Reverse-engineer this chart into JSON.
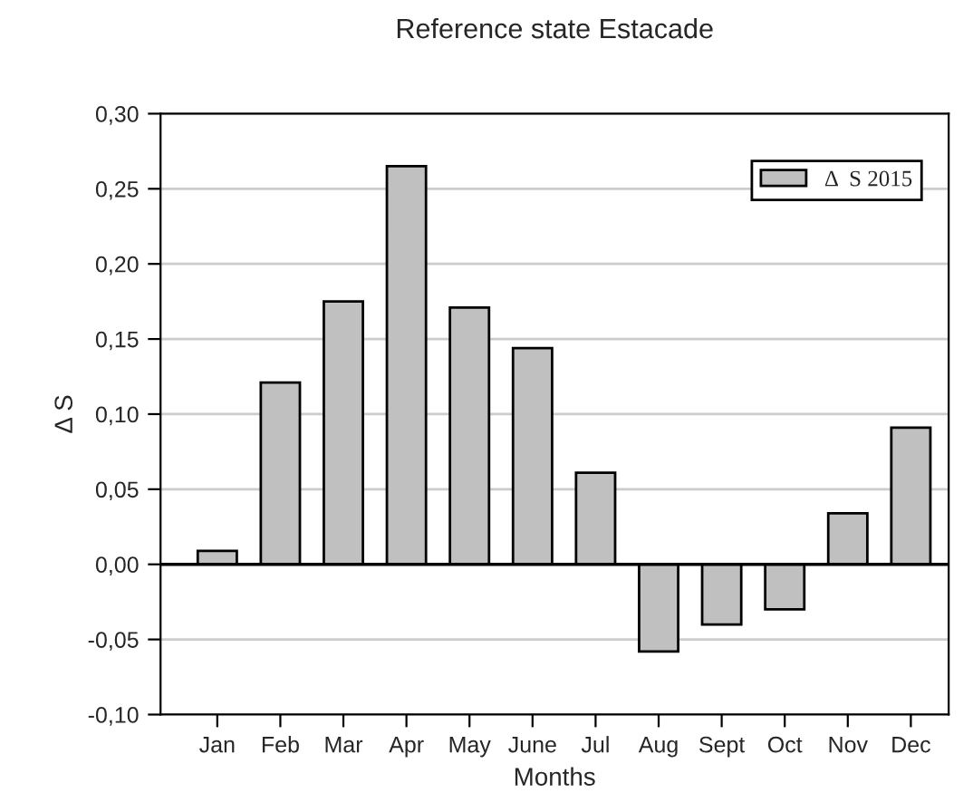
{
  "chart_data": {
    "type": "bar",
    "title": "Reference state Estacade",
    "xlabel": "Months",
    "ylabel": "Δ S",
    "categories": [
      "Jan",
      "Feb",
      "Mar",
      "Apr",
      "May",
      "June",
      "Jul",
      "Aug",
      "Sept",
      "Oct",
      "Nov",
      "Dec"
    ],
    "series": [
      {
        "name": "Δ  S 2015",
        "color": "#c0c0c0",
        "values": [
          0.009,
          0.121,
          0.175,
          0.265,
          0.171,
          0.144,
          0.061,
          -0.058,
          -0.04,
          -0.03,
          0.034,
          0.091
        ]
      }
    ],
    "ylim": [
      -0.1,
      0.3
    ],
    "yticks": [
      {
        "value": -0.1,
        "label": "-0,10"
      },
      {
        "value": -0.05,
        "label": "-0,05"
      },
      {
        "value": 0,
        "label": "0,00"
      },
      {
        "value": 0.05,
        "label": "0,05"
      },
      {
        "value": 0.1,
        "label": "0,10"
      },
      {
        "value": 0.15,
        "label": "0,15"
      },
      {
        "value": 0.2,
        "label": "0,20"
      },
      {
        "value": 0.25,
        "label": "0,25"
      },
      {
        "value": 0.3,
        "label": "0,30"
      }
    ],
    "ref_lines": [
      {
        "axis": "y",
        "value": 0,
        "color": "#000000"
      }
    ],
    "grid": "y",
    "legend": "top right"
  }
}
